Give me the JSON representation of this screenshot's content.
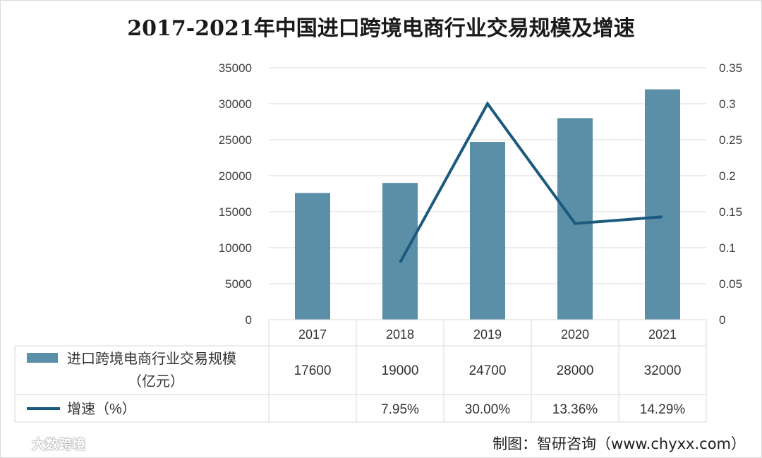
{
  "chart_data": {
    "type": "bar",
    "title": "2017-2021年中国进口跨境电商行业交易规模及增速",
    "categories": [
      "2017",
      "2018",
      "2019",
      "2020",
      "2021"
    ],
    "series": [
      {
        "name": "进口跨境电商行业交易规模（亿元）",
        "type": "bar",
        "axis": "left",
        "values": [
          17600,
          19000,
          24700,
          28000,
          32000
        ],
        "color": "#5b8fa8"
      },
      {
        "name": "增速（%）",
        "type": "line",
        "axis": "right",
        "values": [
          null,
          0.0795,
          0.3,
          0.1336,
          0.1429
        ],
        "color": "#1c5a7d"
      }
    ],
    "table": {
      "bar_row_label_line1": "进口跨境电商行业交易规模",
      "bar_row_label_line2": "（亿元）",
      "bar_row_values": [
        "17600",
        "19000",
        "24700",
        "28000",
        "32000"
      ],
      "line_row_label": "增速（%）",
      "line_row_values": [
        "",
        "7.95%",
        "30.00%",
        "13.36%",
        "14.29%"
      ]
    },
    "y_left": {
      "range": [
        0,
        35000
      ],
      "ticks": [
        0,
        5000,
        10000,
        15000,
        20000,
        25000,
        30000,
        35000
      ],
      "tick_labels": [
        "0",
        "5000",
        "10000",
        "15000",
        "20000",
        "25000",
        "30000",
        "35000"
      ]
    },
    "y_right": {
      "range": [
        0,
        0.35
      ],
      "ticks": [
        0,
        0.05,
        0.1,
        0.15,
        0.2,
        0.25,
        0.3,
        0.35
      ],
      "tick_labels": [
        "0",
        "0.05",
        "0.1",
        "0.15",
        "0.2",
        "0.25",
        "0.3",
        "0.35"
      ]
    },
    "grid": true
  },
  "source": "制图：智研咨询（www.chyxx.com）",
  "watermark": "大数跨境",
  "colors": {
    "bar": "#5b8fa8",
    "line": "#1c5a7d",
    "grid": "#d9d9d9",
    "text": "#333333"
  }
}
